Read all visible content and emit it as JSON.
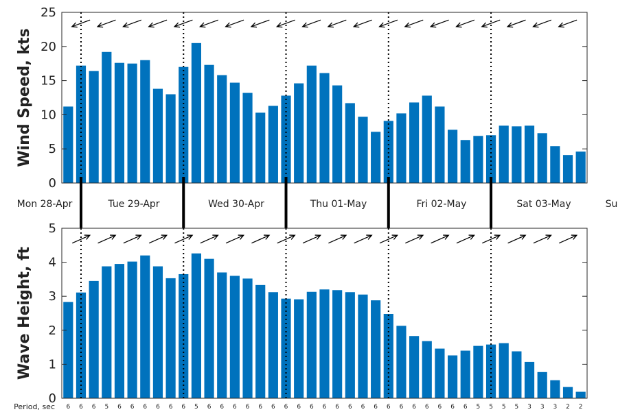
{
  "chart_data": [
    {
      "type": "bar",
      "name": "wind-speed",
      "ylabel": "Wind Speed, kts",
      "ylim": [
        0,
        25
      ],
      "yticks": [
        0,
        5,
        10,
        15,
        20,
        25
      ],
      "values": [
        11.2,
        17.2,
        16.4,
        19.2,
        17.6,
        17.5,
        18.0,
        13.8,
        13.0,
        17.0,
        20.5,
        17.3,
        15.8,
        14.7,
        13.2,
        10.3,
        11.3,
        12.8,
        14.6,
        17.2,
        16.1,
        14.3,
        11.7,
        9.7,
        7.5,
        9.1,
        10.2,
        11.8,
        12.8,
        11.2,
        7.8,
        6.3,
        6.9,
        7.0,
        8.4,
        8.3,
        8.4,
        7.3,
        5.4,
        4.1,
        4.6
      ],
      "grid": false,
      "direction_arrows": "top",
      "arrow_direction": "pointing left-down (from east-northeast)"
    },
    {
      "type": "bar",
      "name": "wave-height",
      "ylabel": "Wave Height, ft",
      "ylim": [
        0,
        5
      ],
      "yticks": [
        0,
        1,
        2,
        3,
        4,
        5
      ],
      "values": [
        2.83,
        3.11,
        3.45,
        3.88,
        3.95,
        4.02,
        4.2,
        3.88,
        3.53,
        3.65,
        4.26,
        4.1,
        3.7,
        3.6,
        3.52,
        3.33,
        3.12,
        2.93,
        2.91,
        3.13,
        3.2,
        3.18,
        3.12,
        3.05,
        2.88,
        2.48,
        2.13,
        1.83,
        1.68,
        1.46,
        1.26,
        1.4,
        1.54,
        1.58,
        1.62,
        1.38,
        1.07,
        0.77,
        0.53,
        0.33,
        0.19
      ],
      "grid": false,
      "direction_arrows": "top",
      "arrow_direction": "pointing right-up (toward east-northeast)"
    }
  ],
  "days": [
    "Mon 28-Apr",
    "Tue 29-Apr",
    "Wed 30-Apr",
    "Thu 01-May",
    "Fri 02-May",
    "Sat 03-May",
    "Sun"
  ],
  "period_label": "Period, sec",
  "periods": [
    "6",
    "6",
    "6",
    "5",
    "6",
    "6",
    "6",
    "6",
    "6",
    "6",
    "5",
    "6",
    "6",
    "6",
    "6",
    "6",
    "6",
    "6",
    "6",
    "6",
    "6",
    "6",
    "6",
    "6",
    "6",
    "6",
    "6",
    "6",
    "6",
    "6",
    "6",
    "6",
    "5",
    "5",
    "5",
    "5",
    "3",
    "3",
    "3",
    "2",
    "2"
  ],
  "colors": {
    "bar": "#0072bd",
    "axis": "#262626",
    "arrow": "#000000"
  },
  "icons": {
    "direction_arrow": "arrow-icon"
  }
}
